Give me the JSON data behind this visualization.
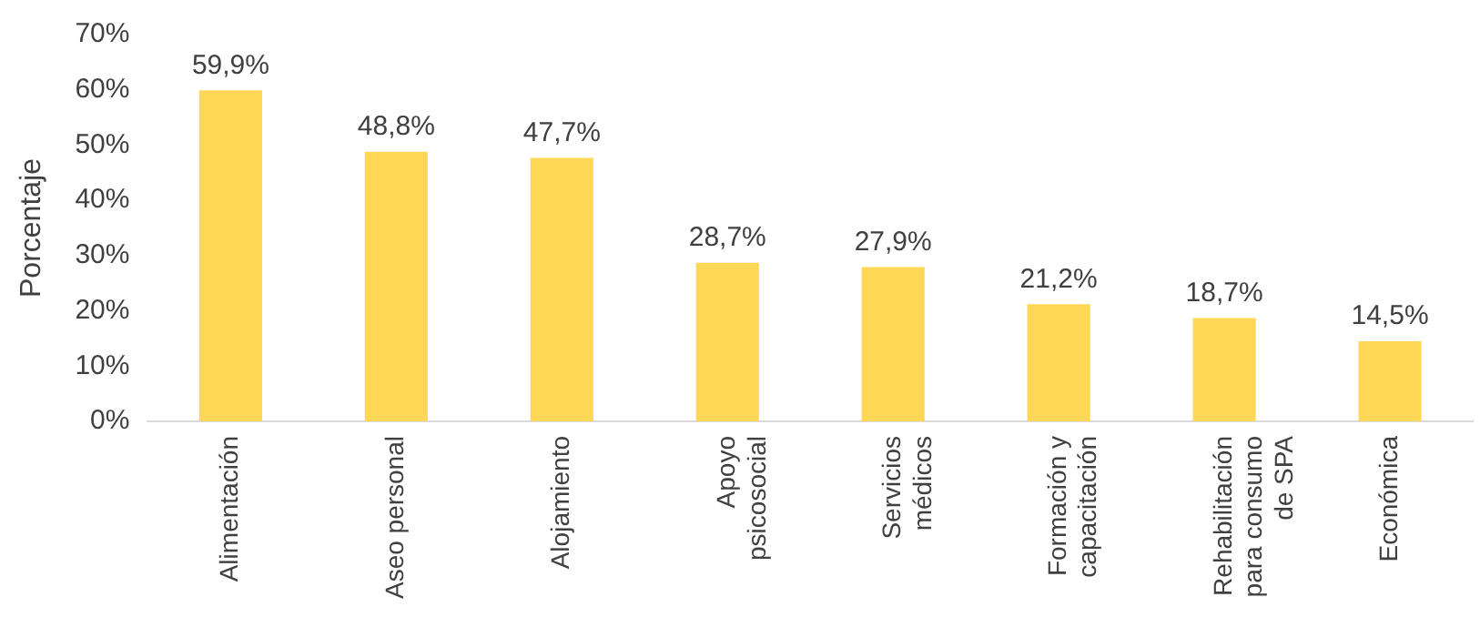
{
  "chart_data": {
    "type": "bar",
    "ylabel": "Porcentaje",
    "categories": [
      "Alimentación",
      "Aseo personal",
      "Alojamiento",
      "Apoyo psicosocial",
      "Servicios médicos",
      "Formación y capacitación",
      "Rehabilitación para consumo de SPA",
      "Económica"
    ],
    "values": [
      59.9,
      48.8,
      47.7,
      28.7,
      27.9,
      21.2,
      18.7,
      14.5
    ],
    "value_labels": [
      "59,9%",
      "48,8%",
      "47,7%",
      "28,7%",
      "27,9%",
      "21,2%",
      "18,7%",
      "14,5%"
    ],
    "color": "#ffd757",
    "ylim": [
      0,
      70
    ],
    "yticks": [
      {
        "value": 0,
        "label": "0%"
      },
      {
        "value": 10,
        "label": "10%"
      },
      {
        "value": 20,
        "label": "20%"
      },
      {
        "value": 30,
        "label": "30%"
      },
      {
        "value": 40,
        "label": "40%"
      },
      {
        "value": 50,
        "label": "50%"
      },
      {
        "value": 60,
        "label": "60%"
      },
      {
        "value": 70,
        "label": "70%"
      }
    ],
    "grid": false,
    "legend": false
  }
}
